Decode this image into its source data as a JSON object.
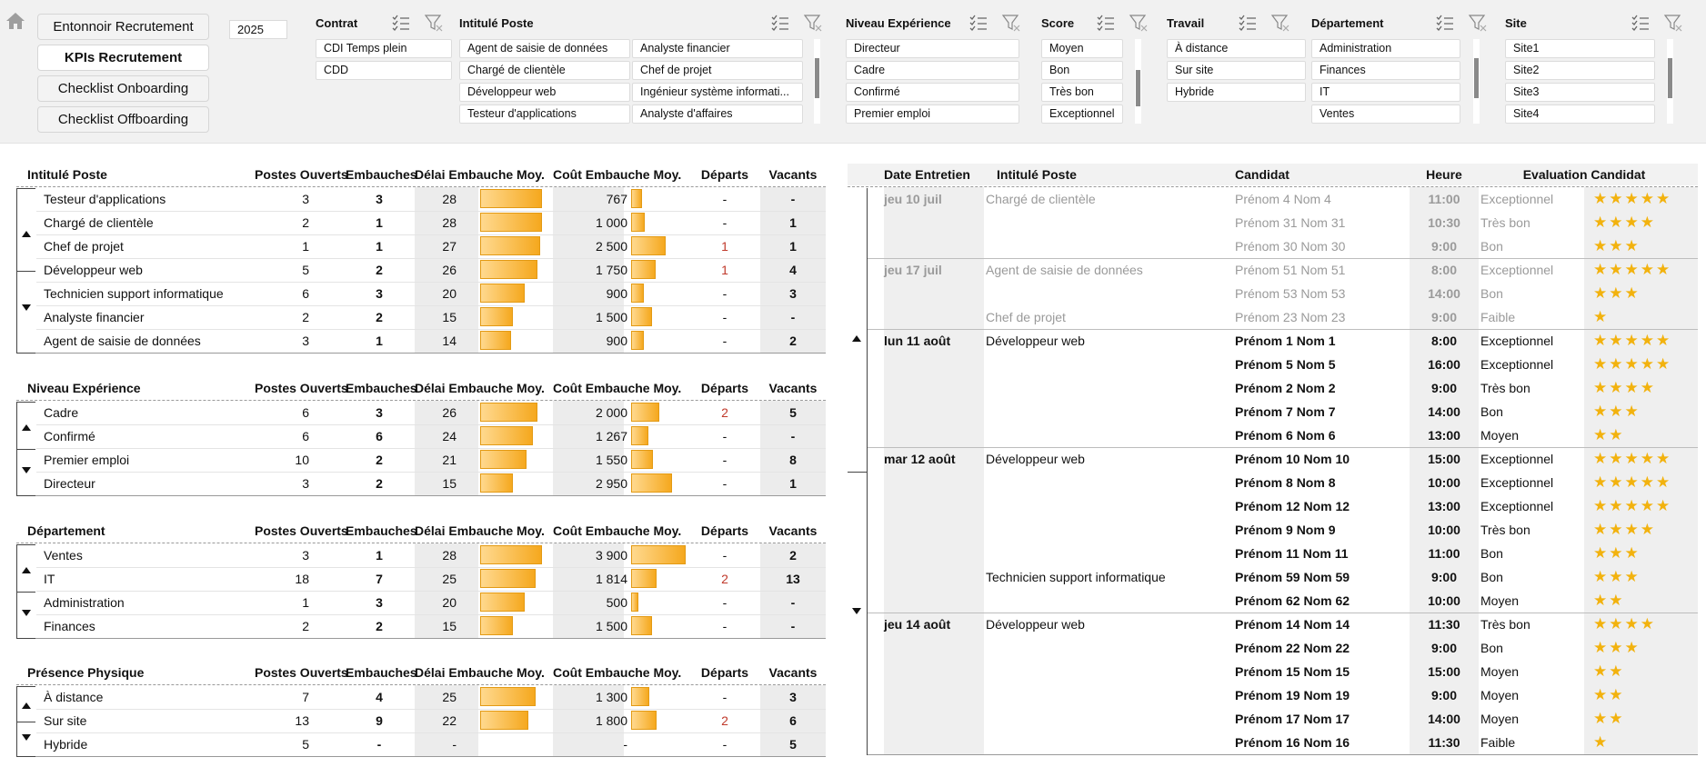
{
  "nav": {
    "buttons": [
      "Entonnoir Recrutement",
      "KPIs Recrutement",
      "Checklist Onboarding",
      "Checklist Offboarding"
    ],
    "active": 1,
    "year": "2025"
  },
  "slicers": {
    "contrat": {
      "title": "Contrat",
      "items": [
        "CDI Temps plein",
        "CDD"
      ]
    },
    "intitule": {
      "title": "Intitulé Poste",
      "items": [
        "Agent de saisie de données",
        "Analyste financier",
        "Chargé de clientèle",
        "Chef de projet",
        "Développeur web",
        "Ingénieur système informati...",
        "Testeur d'applications",
        "Analyste d'affaires"
      ]
    },
    "niveau": {
      "title": "Niveau Expérience",
      "items": [
        "Directeur",
        "Cadre",
        "Confirmé",
        "Premier emploi"
      ]
    },
    "score": {
      "title": "Score",
      "items": [
        "Moyen",
        "Bon",
        "Très bon",
        "Exceptionnel"
      ]
    },
    "travail": {
      "title": "Travail",
      "items": [
        "À distance",
        "Sur site",
        "Hybride"
      ]
    },
    "departement": {
      "title": "Département",
      "items": [
        "Administration",
        "Finances",
        "IT",
        "Ventes"
      ]
    },
    "site": {
      "title": "Site",
      "items": [
        "Site1",
        "Site2",
        "Site3",
        "Site4"
      ]
    }
  },
  "columns": {
    "postes_ouverts": "Postes Ouverts",
    "embauches": "Embauches",
    "delai": "Délai Embauche Moy.",
    "cout": "Coût Embauche Moy.",
    "departs": "Départs",
    "vacants": "Vacants"
  },
  "kpi_tables": [
    {
      "title": "Intitulé Poste",
      "rows": [
        {
          "label": "Testeur d'applications",
          "postes": "3",
          "emb": "3",
          "delai": "28",
          "delai_val": 28,
          "cout": "767",
          "cout_val": 767,
          "departs": "-",
          "vacants": "-"
        },
        {
          "label": "Chargé de clientèle",
          "postes": "2",
          "emb": "1",
          "delai": "28",
          "delai_val": 28,
          "cout": "1 000",
          "cout_val": 1000,
          "departs": "-",
          "vacants": "1"
        },
        {
          "label": "Chef de projet",
          "postes": "1",
          "emb": "1",
          "delai": "27",
          "delai_val": 27,
          "cout": "2 500",
          "cout_val": 2500,
          "departs": "1",
          "vacants": "1"
        },
        {
          "label": "Développeur web",
          "postes": "5",
          "emb": "2",
          "delai": "26",
          "delai_val": 26,
          "cout": "1 750",
          "cout_val": 1750,
          "departs": "1",
          "vacants": "4"
        },
        {
          "label": "Technicien support informatique",
          "postes": "6",
          "emb": "3",
          "delai": "20",
          "delai_val": 20,
          "cout": "900",
          "cout_val": 900,
          "departs": "-",
          "vacants": "3"
        },
        {
          "label": "Analyste financier",
          "postes": "2",
          "emb": "2",
          "delai": "15",
          "delai_val": 15,
          "cout": "1 500",
          "cout_val": 1500,
          "departs": "-",
          "vacants": "-"
        },
        {
          "label": "Agent de saisie de données",
          "postes": "3",
          "emb": "1",
          "delai": "14",
          "delai_val": 14,
          "cout": "900",
          "cout_val": 900,
          "departs": "-",
          "vacants": "2"
        }
      ]
    },
    {
      "title": "Niveau Expérience",
      "rows": [
        {
          "label": "Cadre",
          "postes": "6",
          "emb": "3",
          "delai": "26",
          "delai_val": 26,
          "cout": "2 000",
          "cout_val": 2000,
          "departs": "2",
          "vacants": "5"
        },
        {
          "label": "Confirmé",
          "postes": "6",
          "emb": "6",
          "delai": "24",
          "delai_val": 24,
          "cout": "1 267",
          "cout_val": 1267,
          "departs": "-",
          "vacants": "-"
        },
        {
          "label": "Premier emploi",
          "postes": "10",
          "emb": "2",
          "delai": "21",
          "delai_val": 21,
          "cout": "1 550",
          "cout_val": 1550,
          "departs": "-",
          "vacants": "8"
        },
        {
          "label": "Directeur",
          "postes": "3",
          "emb": "2",
          "delai": "15",
          "delai_val": 15,
          "cout": "2 950",
          "cout_val": 2950,
          "departs": "-",
          "vacants": "1"
        }
      ]
    },
    {
      "title": "Département",
      "rows": [
        {
          "label": "Ventes",
          "postes": "3",
          "emb": "1",
          "delai": "28",
          "delai_val": 28,
          "cout": "3 900",
          "cout_val": 3900,
          "departs": "-",
          "vacants": "2"
        },
        {
          "label": "IT",
          "postes": "18",
          "emb": "7",
          "delai": "25",
          "delai_val": 25,
          "cout": "1 814",
          "cout_val": 1814,
          "departs": "2",
          "vacants": "13"
        },
        {
          "label": "Administration",
          "postes": "1",
          "emb": "3",
          "delai": "20",
          "delai_val": 20,
          "cout": "500",
          "cout_val": 500,
          "departs": "-",
          "vacants": "-"
        },
        {
          "label": "Finances",
          "postes": "2",
          "emb": "2",
          "delai": "15",
          "delai_val": 15,
          "cout": "1 500",
          "cout_val": 1500,
          "departs": "-",
          "vacants": "-"
        }
      ]
    },
    {
      "title": "Présence Physique",
      "rows": [
        {
          "label": "À distance",
          "postes": "7",
          "emb": "4",
          "delai": "25",
          "delai_val": 25,
          "cout": "1 300",
          "cout_val": 1300,
          "departs": "-",
          "vacants": "3"
        },
        {
          "label": "Sur site",
          "postes": "13",
          "emb": "9",
          "delai": "22",
          "delai_val": 22,
          "cout": "1 800",
          "cout_val": 1800,
          "departs": "2",
          "vacants": "6"
        },
        {
          "label": "Hybride",
          "postes": "5",
          "emb": "-",
          "delai": "-",
          "delai_val": 0,
          "cout": "-",
          "cout_val": 0,
          "departs": "-",
          "vacants": "5"
        }
      ]
    }
  ],
  "interviews": {
    "headers": {
      "date": "Date Entretien",
      "poste": "Intitulé Poste",
      "candidat": "Candidat",
      "heure": "Heure",
      "eval": "Evaluation Candidat"
    },
    "rows": [
      {
        "date": "jeu 10 juil",
        "poste": "Chargé de clientèle",
        "candidat": "Prénom 4 Nom 4",
        "heure": "11:00",
        "eval": "Exceptionnel",
        "stars": 5,
        "past": true
      },
      {
        "date": "",
        "poste": "",
        "candidat": "Prénom 31 Nom 31",
        "heure": "10:30",
        "eval": "Très bon",
        "stars": 4,
        "past": true
      },
      {
        "date": "",
        "poste": "",
        "candidat": "Prénom 30 Nom 30",
        "heure": "9:00",
        "eval": "Bon",
        "stars": 3,
        "past": true
      },
      {
        "date": "jeu 17 juil",
        "poste": "Agent de saisie de données",
        "candidat": "Prénom 51 Nom 51",
        "heure": "8:00",
        "eval": "Exceptionnel",
        "stars": 5,
        "past": true
      },
      {
        "date": "",
        "poste": "",
        "candidat": "Prénom 53 Nom 53",
        "heure": "14:00",
        "eval": "Bon",
        "stars": 3,
        "past": true
      },
      {
        "date": "",
        "poste": "Chef de projet",
        "candidat": "Prénom 23 Nom 23",
        "heure": "9:00",
        "eval": "Faible",
        "stars": 1,
        "past": true
      },
      {
        "date": "lun 11 août",
        "poste": "Développeur web",
        "candidat": "Prénom 1 Nom 1",
        "heure": "8:00",
        "eval": "Exceptionnel",
        "stars": 5,
        "past": false
      },
      {
        "date": "",
        "poste": "",
        "candidat": "Prénom 5 Nom 5",
        "heure": "16:00",
        "eval": "Exceptionnel",
        "stars": 5,
        "past": false
      },
      {
        "date": "",
        "poste": "",
        "candidat": "Prénom 2 Nom 2",
        "heure": "9:00",
        "eval": "Très bon",
        "stars": 4,
        "past": false
      },
      {
        "date": "",
        "poste": "",
        "candidat": "Prénom 7 Nom 7",
        "heure": "14:00",
        "eval": "Bon",
        "stars": 3,
        "past": false
      },
      {
        "date": "",
        "poste": "",
        "candidat": "Prénom 6 Nom 6",
        "heure": "13:00",
        "eval": "Moyen",
        "stars": 2,
        "past": false
      },
      {
        "date": "mar 12 août",
        "poste": "Développeur web",
        "candidat": "Prénom 10 Nom 10",
        "heure": "15:00",
        "eval": "Exceptionnel",
        "stars": 5,
        "past": false
      },
      {
        "date": "",
        "poste": "",
        "candidat": "Prénom 8 Nom 8",
        "heure": "10:00",
        "eval": "Exceptionnel",
        "stars": 5,
        "past": false
      },
      {
        "date": "",
        "poste": "",
        "candidat": "Prénom 12 Nom 12",
        "heure": "13:00",
        "eval": "Exceptionnel",
        "stars": 5,
        "past": false
      },
      {
        "date": "",
        "poste": "",
        "candidat": "Prénom 9 Nom 9",
        "heure": "10:00",
        "eval": "Très bon",
        "stars": 4,
        "past": false
      },
      {
        "date": "",
        "poste": "",
        "candidat": "Prénom 11 Nom 11",
        "heure": "11:00",
        "eval": "Bon",
        "stars": 3,
        "past": false
      },
      {
        "date": "",
        "poste": "Technicien support informatique",
        "candidat": "Prénom 59 Nom 59",
        "heure": "9:00",
        "eval": "Bon",
        "stars": 3,
        "past": false
      },
      {
        "date": "",
        "poste": "",
        "candidat": "Prénom 62 Nom 62",
        "heure": "10:00",
        "eval": "Moyen",
        "stars": 2,
        "past": false
      },
      {
        "date": "jeu 14 août",
        "poste": "Développeur web",
        "candidat": "Prénom 14 Nom 14",
        "heure": "11:30",
        "eval": "Très bon",
        "stars": 4,
        "past": false
      },
      {
        "date": "",
        "poste": "",
        "candidat": "Prénom 22 Nom 22",
        "heure": "9:00",
        "eval": "Bon",
        "stars": 3,
        "past": false
      },
      {
        "date": "",
        "poste": "",
        "candidat": "Prénom 15 Nom 15",
        "heure": "15:00",
        "eval": "Moyen",
        "stars": 2,
        "past": false
      },
      {
        "date": "",
        "poste": "",
        "candidat": "Prénom 19 Nom 19",
        "heure": "9:00",
        "eval": "Moyen",
        "stars": 2,
        "past": false
      },
      {
        "date": "",
        "poste": "",
        "candidat": "Prénom 17 Nom 17",
        "heure": "14:00",
        "eval": "Moyen",
        "stars": 2,
        "past": false
      },
      {
        "date": "",
        "poste": "",
        "candidat": "Prénom 16 Nom 16",
        "heure": "11:30",
        "eval": "Faible",
        "stars": 1,
        "past": false
      }
    ]
  },
  "scales": {
    "delai_max": 28,
    "cout_max": 3900
  }
}
